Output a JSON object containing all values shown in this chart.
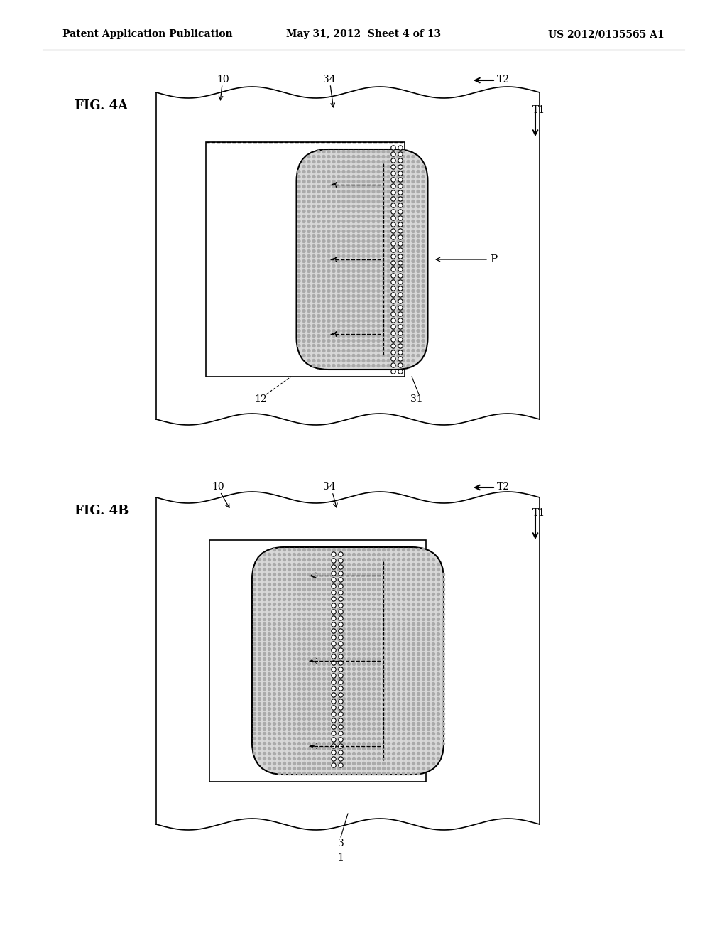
{
  "header_left": "Patent Application Publication",
  "header_mid": "May 31, 2012  Sheet 4 of 13",
  "header_right": "US 2012/0135565 A1",
  "fig4a_label": "FIG. 4A",
  "fig4b_label": "FIG. 4B",
  "background": "#ffffff",
  "line_color": "#000000"
}
